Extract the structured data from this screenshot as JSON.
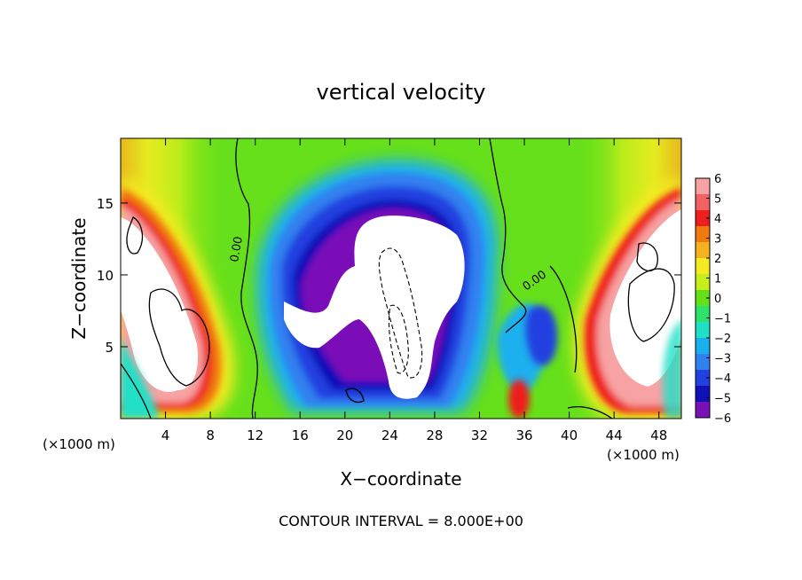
{
  "chart_data": {
    "type": "heatmap",
    "title": "vertical velocity",
    "xlabel": "X−coordinate",
    "ylabel": "Z−coordinate",
    "x_unit": "(×1000 m)",
    "y_unit": "(×1000 m)",
    "xlim": [
      0,
      50
    ],
    "ylim": [
      0,
      19.5
    ],
    "x_ticks": [
      "4",
      "8",
      "12",
      "16",
      "20",
      "24",
      "28",
      "32",
      "36",
      "40",
      "44",
      "48"
    ],
    "y_ticks": [
      "5",
      "10",
      "15"
    ],
    "colorbar": {
      "ticks": [
        "6",
        "5",
        "4",
        "3",
        "2",
        "1",
        "0",
        "−1",
        "−2",
        "−3",
        "−4",
        "−5",
        "−6"
      ],
      "colors": [
        "#f7a3a3",
        "#f26262",
        "#ee1f1f",
        "#f07a10",
        "#f6b21e",
        "#f4ec20",
        "#c5ee1a",
        "#66e01a",
        "#2ee36a",
        "#20e0c8",
        "#1ab0ee",
        "#3080f0",
        "#2040e0",
        "#1010b8",
        "#7a10b8"
      ]
    },
    "contour_labels": [
      "0.00",
      "0.00"
    ],
    "footer": "CONTOUR INTERVAL = 8.000E+00"
  }
}
